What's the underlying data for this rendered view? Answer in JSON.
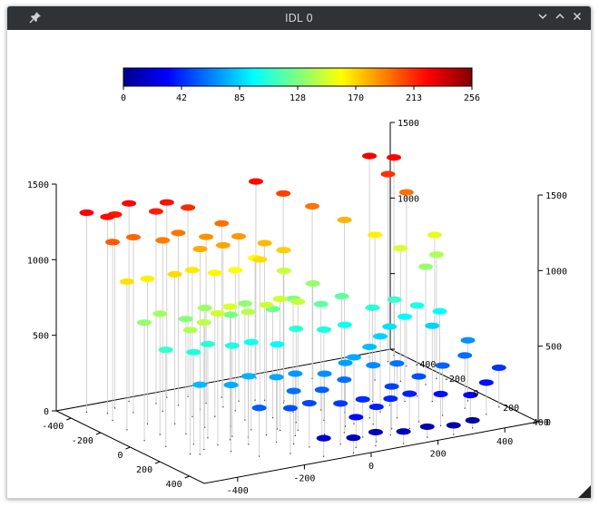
{
  "window": {
    "title": "IDL 0",
    "pin_icon": "pin-icon",
    "minimize_icon": "chevron-down-icon",
    "maximize_icon": "chevron-up-icon",
    "close_icon": "close-icon"
  },
  "chart_data": {
    "type": "scatter3d",
    "title": "",
    "colorbar": {
      "colormap": "jet",
      "range": [
        0,
        256
      ],
      "ticks": [
        "0",
        "42",
        "85",
        "128",
        "170",
        "213",
        "256"
      ]
    },
    "axes": {
      "x": {
        "range": [
          -500,
          500
        ],
        "ticks": [
          "-400",
          "-200",
          "0",
          "200",
          "400"
        ]
      },
      "y": {
        "range": [
          -500,
          500
        ],
        "ticks": [
          "-400",
          "-200",
          "0",
          "200",
          "400"
        ]
      },
      "z": {
        "range": [
          0,
          1500
        ],
        "ticks": [
          "0",
          "500",
          "1000",
          "1500"
        ]
      }
    },
    "drop_lines": true,
    "points": [
      [
        -440,
        -430,
        1320
      ],
      [
        -400,
        -380,
        1300
      ],
      [
        -360,
        -420,
        1280
      ],
      [
        -300,
        -460,
        1310
      ],
      [
        -250,
        -390,
        1270
      ],
      [
        -200,
        -430,
        1290
      ],
      [
        -150,
        -400,
        1250
      ],
      [
        -420,
        -300,
        1180
      ],
      [
        -340,
        -340,
        1160
      ],
      [
        -270,
        -300,
        1130
      ],
      [
        -210,
        -330,
        1140
      ],
      [
        -140,
        -300,
        1100
      ],
      [
        -80,
        -330,
        1150
      ],
      [
        -430,
        -180,
        980
      ],
      [
        -360,
        -200,
        960
      ],
      [
        -300,
        -150,
        990
      ],
      [
        -230,
        -190,
        970
      ],
      [
        -180,
        -150,
        950
      ],
      [
        -110,
        -170,
        930
      ],
      [
        -50,
        -140,
        990
      ],
      [
        30,
        -160,
        1010
      ],
      [
        -440,
        -40,
        780
      ],
      [
        -380,
        -70,
        800
      ],
      [
        -320,
        -30,
        760
      ],
      [
        -250,
        -60,
        790
      ],
      [
        -190,
        -20,
        740
      ],
      [
        -130,
        -60,
        770
      ],
      [
        -60,
        -30,
        720
      ],
      [
        10,
        -50,
        750
      ],
      [
        80,
        -20,
        700
      ],
      [
        -420,
        60,
        640
      ],
      [
        -350,
        90,
        610
      ],
      [
        -290,
        50,
        620
      ],
      [
        -230,
        80,
        600
      ],
      [
        -160,
        50,
        580
      ],
      [
        -100,
        90,
        560
      ],
      [
        -30,
        60,
        620
      ],
      [
        40,
        90,
        600
      ],
      [
        120,
        50,
        580
      ],
      [
        -380,
        200,
        460
      ],
      [
        -300,
        230,
        440
      ],
      [
        -230,
        190,
        450
      ],
      [
        -160,
        220,
        430
      ],
      [
        -90,
        190,
        410
      ],
      [
        -20,
        230,
        400
      ],
      [
        60,
        190,
        420
      ],
      [
        130,
        220,
        390
      ],
      [
        210,
        200,
        360
      ],
      [
        -260,
        330,
        320
      ],
      [
        -180,
        360,
        300
      ],
      [
        -110,
        330,
        290
      ],
      [
        -30,
        360,
        270
      ],
      [
        50,
        330,
        250
      ],
      [
        120,
        360,
        240
      ],
      [
        190,
        330,
        230
      ],
      [
        270,
        360,
        210
      ],
      [
        -120,
        450,
        120
      ],
      [
        -40,
        470,
        100
      ],
      [
        40,
        440,
        90
      ],
      [
        110,
        470,
        80
      ],
      [
        190,
        450,
        70
      ],
      [
        260,
        470,
        60
      ],
      [
        330,
        440,
        50
      ],
      [
        -10,
        420,
        200
      ],
      [
        60,
        400,
        230
      ],
      [
        150,
        300,
        280
      ],
      [
        240,
        280,
        300
      ],
      [
        320,
        260,
        330
      ],
      [
        400,
        230,
        350
      ],
      [
        440,
        160,
        400
      ],
      [
        360,
        100,
        500
      ],
      [
        300,
        50,
        560
      ],
      [
        230,
        -10,
        620
      ],
      [
        160,
        -60,
        700
      ],
      [
        100,
        -120,
        780
      ],
      [
        40,
        -180,
        860
      ],
      [
        -20,
        -240,
        940
      ],
      [
        420,
        -80,
        780
      ],
      [
        380,
        -160,
        880
      ],
      [
        330,
        -220,
        960
      ],
      [
        270,
        -290,
        1050
      ],
      [
        200,
        -350,
        1140
      ],
      [
        140,
        -410,
        1220
      ],
      [
        80,
        -460,
        1300
      ],
      [
        460,
        -300,
        1150
      ],
      [
        440,
        -380,
        1240
      ],
      [
        480,
        -430,
        1310
      ],
      [
        420,
        -460,
        1330
      ],
      [
        500,
        -200,
        900
      ],
      [
        470,
        -120,
        820
      ],
      [
        350,
        380,
        180
      ],
      [
        420,
        330,
        210
      ],
      [
        480,
        280,
        260
      ],
      [
        -200,
        120,
        830
      ],
      [
        -150,
        130,
        860
      ],
      [
        -100,
        110,
        870
      ],
      [
        -60,
        140,
        850
      ],
      [
        -250,
        110,
        880
      ],
      [
        -300,
        140,
        870
      ],
      [
        -350,
        160,
        840
      ],
      [
        -400,
        180,
        820
      ],
      [
        -120,
        -230,
        1070
      ],
      [
        -60,
        -260,
        1090
      ],
      [
        0,
        -220,
        1040
      ],
      [
        -180,
        -250,
        1060
      ],
      [
        300,
        -20,
        640
      ],
      [
        350,
        20,
        600
      ],
      [
        400,
        60,
        560
      ],
      [
        250,
        60,
        520
      ],
      [
        200,
        110,
        500
      ],
      [
        150,
        150,
        470
      ],
      [
        90,
        180,
        440
      ],
      [
        30,
        250,
        350
      ],
      [
        -50,
        280,
        330
      ],
      [
        -130,
        270,
        350
      ]
    ]
  }
}
